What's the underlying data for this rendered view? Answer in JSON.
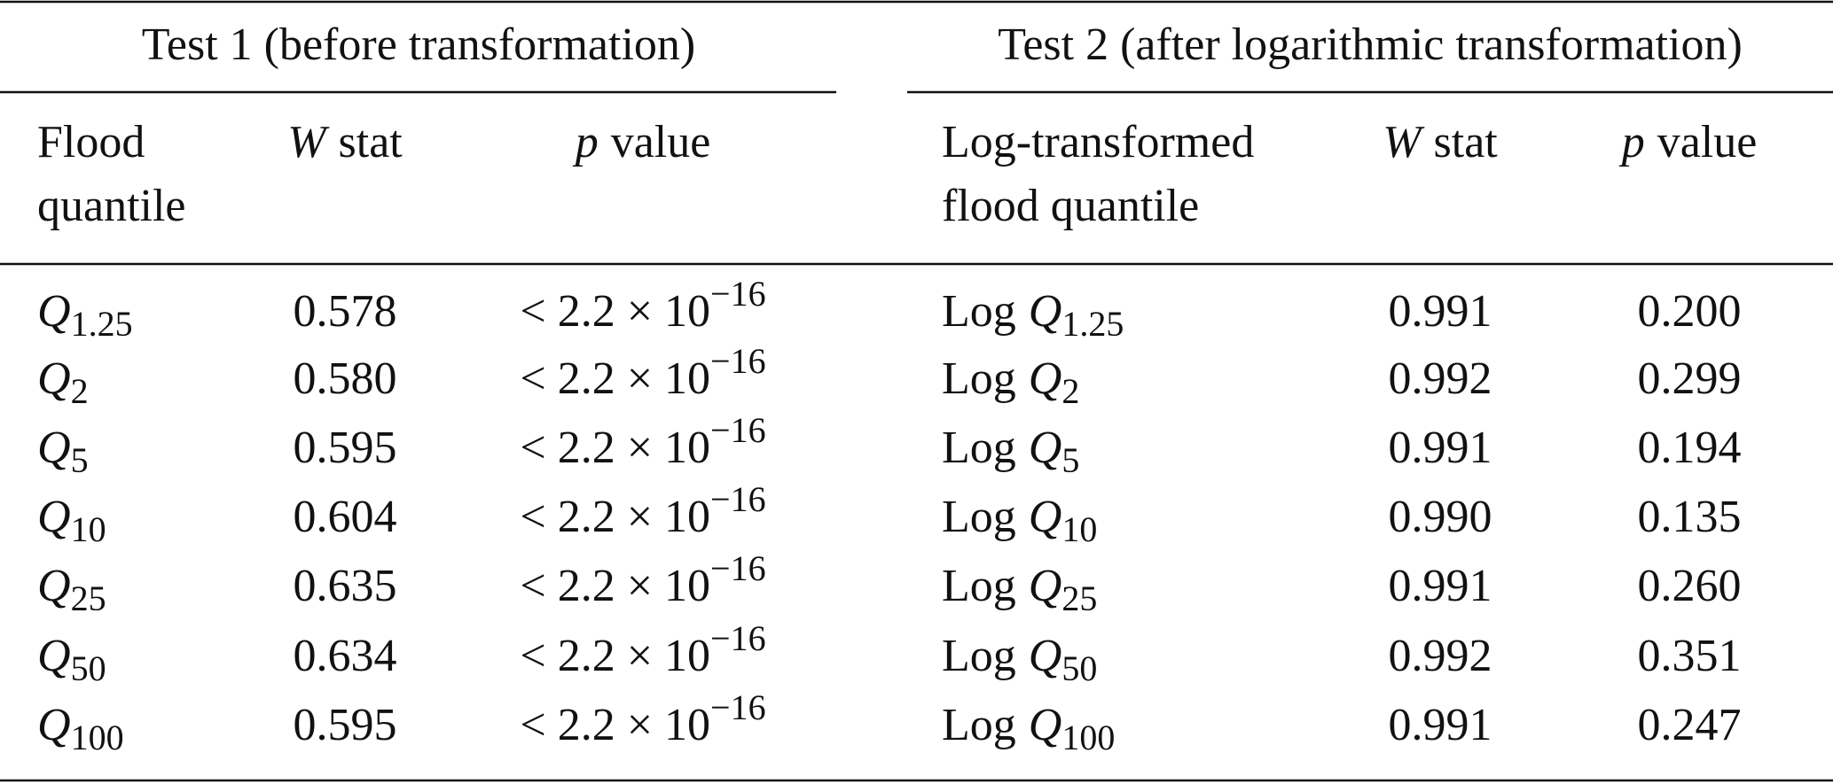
{
  "table": {
    "groups": [
      "Test 1 (before transformation)",
      "Test 2 (after logarithmic transformation)"
    ],
    "header": [
      {
        "lines": [
          "Flood",
          "quantile"
        ]
      },
      {
        "var": "W",
        "text": "stat"
      },
      {
        "var": "p",
        "text": "value"
      },
      {
        "lines": [
          "Log-transformed",
          "flood quantile"
        ]
      },
      {
        "var": "W",
        "text": "stat"
      },
      {
        "var": "p",
        "text": "value"
      }
    ],
    "rows": [
      [
        {
          "symbol": "Q",
          "sub": "1.25"
        },
        "0.578",
        {
          "base": "< 2.2 × 10",
          "sup": "−16"
        },
        {
          "prefix": "Log",
          "symbol": "Q",
          "sub": "1.25"
        },
        "0.991",
        "0.200"
      ],
      [
        {
          "symbol": "Q",
          "sub": "2"
        },
        "0.580",
        {
          "base": "< 2.2 × 10",
          "sup": "−16"
        },
        {
          "prefix": "Log",
          "symbol": "Q",
          "sub": "2"
        },
        "0.992",
        "0.299"
      ],
      [
        {
          "symbol": "Q",
          "sub": "5"
        },
        "0.595",
        {
          "base": "< 2.2 × 10",
          "sup": "−16"
        },
        {
          "prefix": "Log",
          "symbol": "Q",
          "sub": "5"
        },
        "0.991",
        "0.194"
      ],
      [
        {
          "symbol": "Q",
          "sub": "10"
        },
        "0.604",
        {
          "base": "< 2.2 × 10",
          "sup": "−16"
        },
        {
          "prefix": "Log",
          "symbol": "Q",
          "sub": "10"
        },
        "0.990",
        "0.135"
      ],
      [
        {
          "symbol": "Q",
          "sub": "25"
        },
        "0.635",
        {
          "base": "< 2.2 × 10",
          "sup": "−16"
        },
        {
          "prefix": "Log",
          "symbol": "Q",
          "sub": "25"
        },
        "0.991",
        "0.260"
      ],
      [
        {
          "symbol": "Q",
          "sub": "50"
        },
        "0.634",
        {
          "base": "< 2.2 × 10",
          "sup": "−16"
        },
        {
          "prefix": "Log",
          "symbol": "Q",
          "sub": "50"
        },
        "0.992",
        "0.351"
      ],
      [
        {
          "symbol": "Q",
          "sub": "100"
        },
        "0.595",
        {
          "base": "< 2.2 × 10",
          "sup": "−16"
        },
        {
          "prefix": "Log",
          "symbol": "Q",
          "sub": "100"
        },
        "0.991",
        "0.247"
      ]
    ]
  }
}
